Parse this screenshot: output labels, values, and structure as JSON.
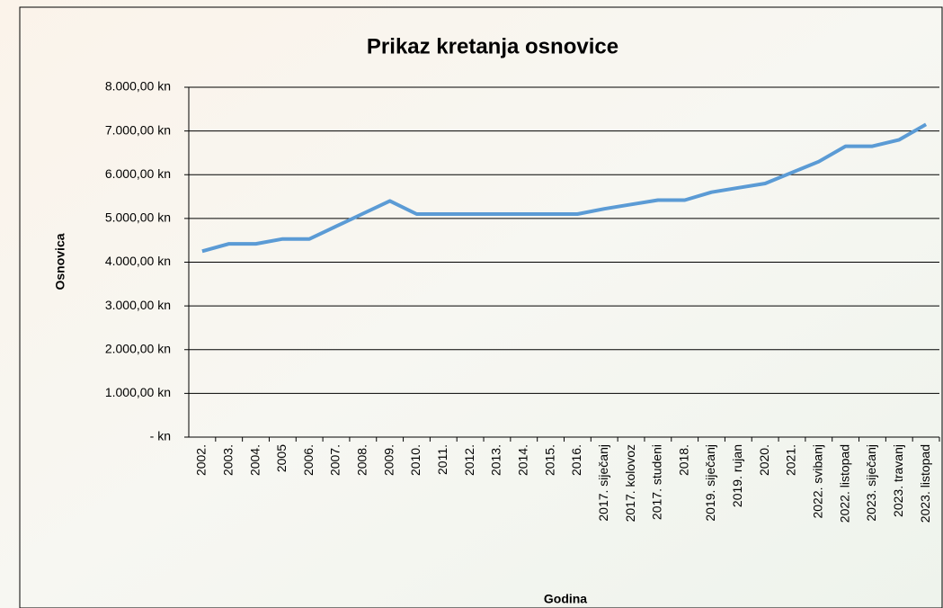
{
  "chart_data": {
    "type": "line",
    "title": "Prikaz kretanja osnovice",
    "x_label": "Godina",
    "y_label": "Osnovica",
    "categories": [
      "2002.",
      "2003.",
      "2004.",
      "2005",
      "2006.",
      "2007.",
      "2008.",
      "2009.",
      "2010.",
      "2011.",
      "2012.",
      "2013.",
      "2014.",
      "2015.",
      "2016.",
      "2017. siječanj",
      "2017. kolovoz",
      "2017. studeni",
      "2018.",
      "2019. siječanj",
      "2019. rujan",
      "2020.",
      "2021.",
      "2022. svibanj",
      "2022. listopad",
      "2023. siječanj",
      "2023. travanj",
      "2023. listopad"
    ],
    "series": [
      {
        "name": "Osnovica",
        "color": "#5b9bd5",
        "values": [
          4250,
          4420,
          4420,
          4530,
          4530,
          4820,
          5110,
          5400,
          5100,
          5100,
          5100,
          5100,
          5100,
          5100,
          5100,
          5220,
          5320,
          5420,
          5420,
          5600,
          5700,
          5800,
          6050,
          6300,
          6650,
          6650,
          6800,
          7150
        ]
      }
    ],
    "ylim": [
      0,
      8000
    ],
    "yticks": [
      {
        "value": 0,
        "label": "-   kn"
      },
      {
        "value": 1000,
        "label": "1.000,00 kn"
      },
      {
        "value": 2000,
        "label": "2.000,00 kn"
      },
      {
        "value": 3000,
        "label": "3.000,00 kn"
      },
      {
        "value": 4000,
        "label": "4.000,00 kn"
      },
      {
        "value": 5000,
        "label": "5.000,00 kn"
      },
      {
        "value": 6000,
        "label": "6.000,00 kn"
      },
      {
        "value": 7000,
        "label": "7.000,00 kn"
      },
      {
        "value": 8000,
        "label": "8.000,00 kn"
      }
    ],
    "grid": true
  }
}
